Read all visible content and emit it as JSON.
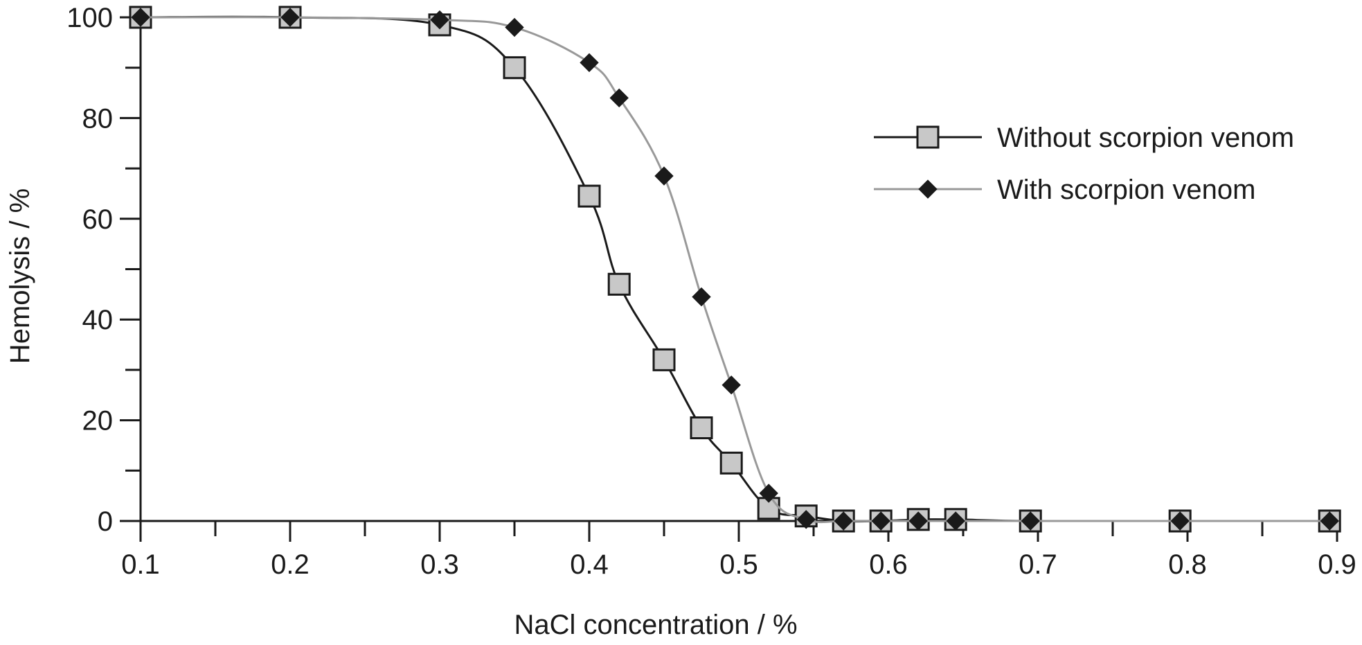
{
  "chart_data": {
    "type": "line",
    "title": "",
    "xlabel": "NaCl concentration / %",
    "ylabel": "Hemolysis / %",
    "xlim": [
      0.1,
      0.9
    ],
    "ylim": [
      0,
      100
    ],
    "x_ticks": [
      0.1,
      0.2,
      0.3,
      0.4,
      0.5,
      0.6,
      0.7,
      0.8,
      0.9
    ],
    "x_tick_labels": [
      "0.1",
      "0.2",
      "0.3",
      "0.4",
      "0.5",
      "0.6",
      "0.7",
      "0.8",
      "0.9"
    ],
    "y_ticks": [
      0,
      20,
      40,
      60,
      80,
      100
    ],
    "y_tick_labels": [
      "0",
      "20",
      "40",
      "60",
      "80",
      "100"
    ],
    "grid": false,
    "legend_position": "top-right",
    "series": [
      {
        "name": "Without scorpion venom",
        "marker": "square",
        "line_color": "#1a1a1a",
        "marker_fill": "#c8c8c8",
        "marker_stroke": "#1a1a1a",
        "x": [
          0.1,
          0.2,
          0.3,
          0.35,
          0.4,
          0.42,
          0.45,
          0.475,
          0.495,
          0.52,
          0.545,
          0.57,
          0.595,
          0.62,
          0.645,
          0.695,
          0.795,
          0.895
        ],
        "y": [
          100,
          100,
          98.5,
          90,
          64.5,
          47,
          32,
          18.5,
          11.5,
          2.5,
          1,
          0,
          0,
          0.3,
          0.3,
          0,
          0,
          0
        ]
      },
      {
        "name": "With scorpion venom",
        "marker": "diamond",
        "line_color": "#999999",
        "marker_fill": "#1a1a1a",
        "marker_stroke": "#1a1a1a",
        "x": [
          0.1,
          0.2,
          0.3,
          0.35,
          0.4,
          0.42,
          0.45,
          0.475,
          0.495,
          0.52,
          0.545,
          0.57,
          0.595,
          0.62,
          0.645,
          0.695,
          0.795,
          0.895
        ],
        "y": [
          100,
          100,
          99.5,
          98,
          91,
          84,
          68.5,
          44.5,
          27,
          5.5,
          0.3,
          0,
          0,
          0,
          0,
          0,
          0,
          0
        ]
      }
    ]
  }
}
